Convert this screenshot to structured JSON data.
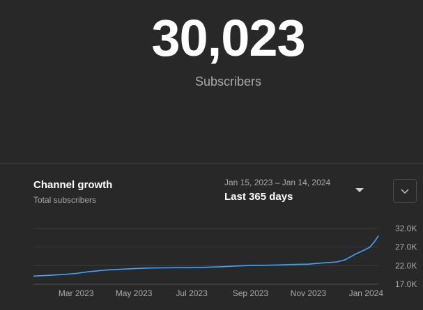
{
  "header": {
    "subscriber_count": "30,023",
    "subscriber_label": "Subscribers"
  },
  "growth_card": {
    "title": "Channel growth",
    "subtitle": "Total subscribers",
    "date_range": "Jan 15, 2023 – Jan 14, 2024",
    "range_label": "Last 365 days",
    "dropdown_icon": "caret-down-icon",
    "expand_icon": "chevron-down-icon"
  },
  "colors": {
    "background": "#282828",
    "line": "#3ea6ff",
    "grid": "#3d3d3d",
    "muted_text": "#aaaaaa"
  },
  "chart_data": {
    "type": "line",
    "series": [
      {
        "values": [
          {
            "x": "2023-01-15",
            "y": 19200
          },
          {
            "x": "2023-02-01",
            "y": 19400
          },
          {
            "x": "2023-02-15",
            "y": 19600
          },
          {
            "x": "2023-03-01",
            "y": 19900
          },
          {
            "x": "2023-03-15",
            "y": 20400
          },
          {
            "x": "2023-04-01",
            "y": 20800
          },
          {
            "x": "2023-04-15",
            "y": 21000
          },
          {
            "x": "2023-05-01",
            "y": 21200
          },
          {
            "x": "2023-05-15",
            "y": 21350
          },
          {
            "x": "2023-06-01",
            "y": 21400
          },
          {
            "x": "2023-06-15",
            "y": 21450
          },
          {
            "x": "2023-07-01",
            "y": 21450
          },
          {
            "x": "2023-07-15",
            "y": 21550
          },
          {
            "x": "2023-08-01",
            "y": 21700
          },
          {
            "x": "2023-08-15",
            "y": 21900
          },
          {
            "x": "2023-09-01",
            "y": 22050
          },
          {
            "x": "2023-09-15",
            "y": 22100
          },
          {
            "x": "2023-10-01",
            "y": 22200
          },
          {
            "x": "2023-10-15",
            "y": 22300
          },
          {
            "x": "2023-11-01",
            "y": 22400
          },
          {
            "x": "2023-11-15",
            "y": 22700
          },
          {
            "x": "2023-12-01",
            "y": 23000
          },
          {
            "x": "2023-12-10",
            "y": 23600
          },
          {
            "x": "2023-12-20",
            "y": 25000
          },
          {
            "x": "2023-12-31",
            "y": 26300
          },
          {
            "x": "2024-01-05",
            "y": 27000
          },
          {
            "x": "2024-01-10",
            "y": 28500
          },
          {
            "x": "2024-01-14",
            "y": 30023
          }
        ]
      }
    ],
    "x_ticks": [
      "Mar 2023",
      "May 2023",
      "Jul 2023",
      "Sep 2023",
      "Nov 2023",
      "Jan 2024"
    ],
    "x_tick_dates": [
      "2023-03-01",
      "2023-05-01",
      "2023-07-01",
      "2023-09-01",
      "2023-11-01",
      "2024-01-01"
    ],
    "y_ticks": [
      "32.0K",
      "27.0K",
      "22.0K",
      "17.0K"
    ],
    "y_tick_values": [
      32000,
      27000,
      22000,
      17000
    ],
    "ylim": [
      17000,
      32000
    ],
    "xlim": [
      "2023-01-15",
      "2024-01-14"
    ],
    "grid": true
  }
}
